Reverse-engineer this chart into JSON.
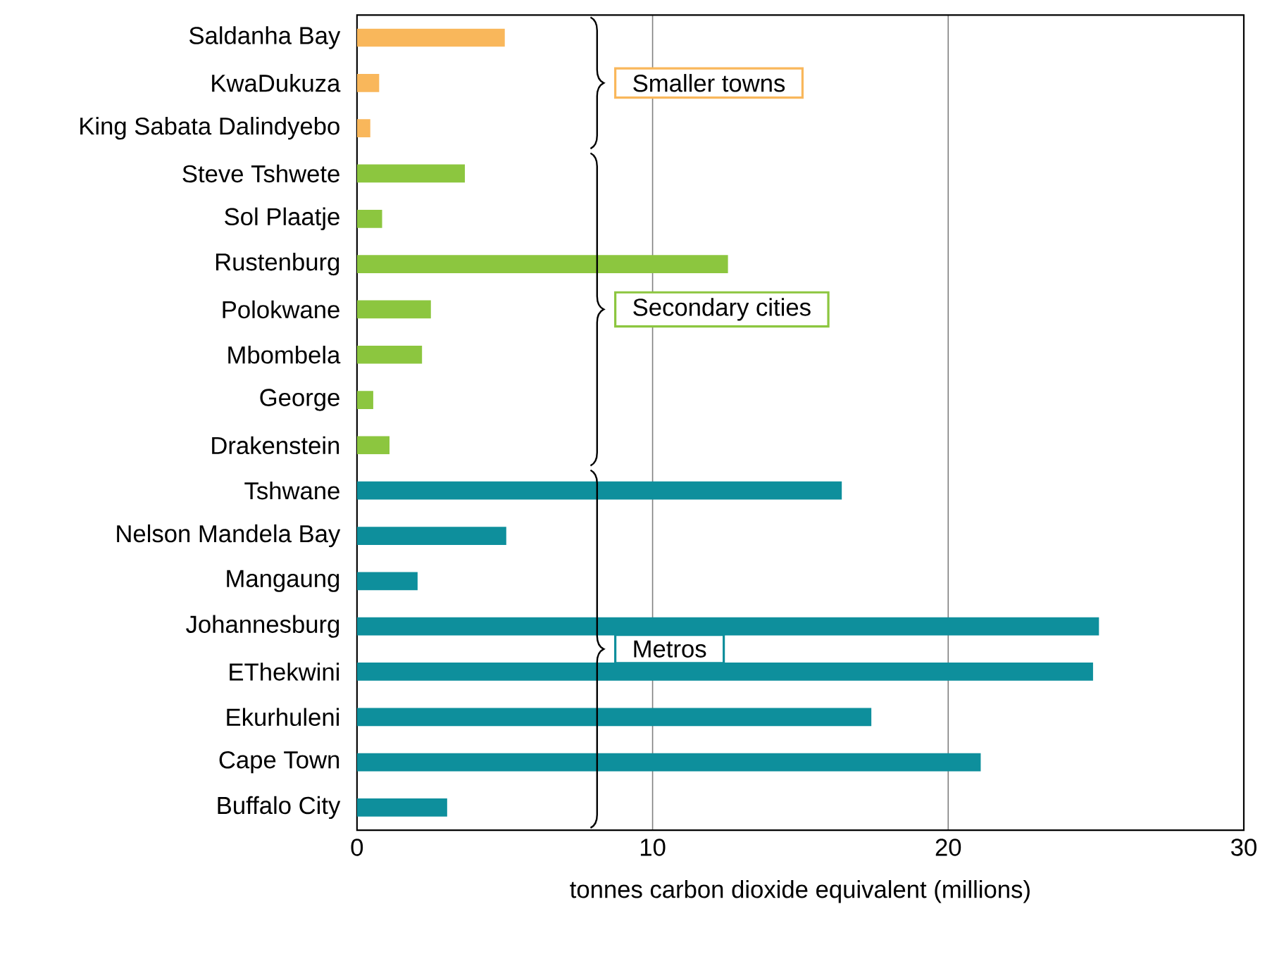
{
  "chart_data": {
    "type": "bar",
    "orientation": "horizontal",
    "xlabel": "tonnes carbon dioxide equivalent (millions)",
    "categories": [
      "Saldanha Bay",
      "KwaDukuza",
      "King Sabata Dalindyebo",
      "Steve Tshwete",
      "Sol Plaatje",
      "Rustenburg",
      "Polokwane",
      "Mbombela",
      "George",
      "Drakenstein",
      "Tshwane",
      "Nelson Mandela Bay",
      "Mangaung",
      "Johannesburg",
      "EThekwini",
      "Ekurhuleni",
      "Cape Town",
      "Buffalo City"
    ],
    "series": [
      {
        "name": "Smaller towns",
        "color": "#f9b75b",
        "values": [
          5.0,
          0.75,
          0.45,
          null,
          null,
          null,
          null,
          null,
          null,
          null,
          null,
          null,
          null,
          null,
          null,
          null,
          null,
          null
        ]
      },
      {
        "name": "Secondary cities",
        "color": "#8cc63f",
        "values": [
          null,
          null,
          null,
          3.65,
          0.85,
          12.55,
          2.5,
          2.2,
          0.55,
          1.1,
          null,
          null,
          null,
          null,
          null,
          null,
          null,
          null
        ]
      },
      {
        "name": "Metros",
        "color": "#0e8f9c",
        "values": [
          null,
          null,
          null,
          null,
          null,
          null,
          null,
          null,
          null,
          null,
          16.4,
          5.05,
          2.05,
          25.1,
          24.9,
          17.4,
          21.1,
          3.05
        ]
      }
    ],
    "xlim": [
      0,
      30
    ],
    "xticks": [
      0,
      10,
      20,
      30
    ],
    "grid": "x"
  }
}
